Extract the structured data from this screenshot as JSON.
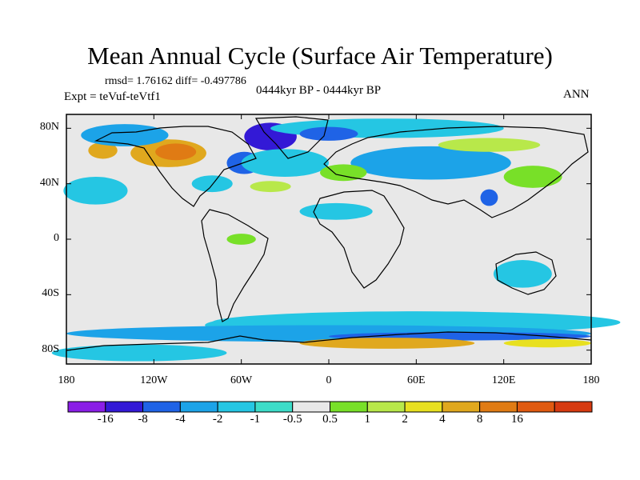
{
  "title": "Mean Annual Cycle (Surface Air Temperature)",
  "stats_line": "rmsd= 1.76162 diff= -0.497786",
  "experiment_line": "Expt = teVuf-teVtf1",
  "period_line": "0444kyr BP - 0444kyr BP",
  "season_label": "ANN",
  "map": {
    "lon_range": [
      -180,
      180
    ],
    "lat_range": [
      -90,
      90
    ],
    "lat_ticks": [
      {
        "value": 80,
        "label": "80N"
      },
      {
        "value": 40,
        "label": "40N"
      },
      {
        "value": 0,
        "label": "0"
      },
      {
        "value": -40,
        "label": "40S"
      },
      {
        "value": -80,
        "label": "80S"
      }
    ],
    "lon_ticks": [
      {
        "value": -180,
        "label": "180"
      },
      {
        "value": -120,
        "label": "120W"
      },
      {
        "value": -60,
        "label": "60W"
      },
      {
        "value": 0,
        "label": "0"
      },
      {
        "value": 60,
        "label": "60E"
      },
      {
        "value": 120,
        "label": "120E"
      },
      {
        "value": 180,
        "label": "180"
      }
    ],
    "background_color": "#e8e8e8"
  },
  "colorbar": {
    "colors": [
      "#8a1ee6",
      "#3319d6",
      "#1f63e6",
      "#1ca3e8",
      "#25c6e3",
      "#3cdcc8",
      "#e8e8e8",
      "#78e028",
      "#b8e84a",
      "#e8e020",
      "#e0a81e",
      "#e07b14",
      "#e05a10",
      "#d63a10"
    ],
    "labels": [
      {
        "value": "-16",
        "boundary": 1
      },
      {
        "value": "-8",
        "boundary": 2
      },
      {
        "value": "-4",
        "boundary": 3
      },
      {
        "value": "-2",
        "boundary": 4
      },
      {
        "value": "-1",
        "boundary": 5
      },
      {
        "value": "-0.5",
        "boundary": 6
      },
      {
        "value": "0.5",
        "boundary": 7
      },
      {
        "value": "1",
        "boundary": 8
      },
      {
        "value": "2",
        "boundary": 9
      },
      {
        "value": "4",
        "boundary": 10
      },
      {
        "value": "8",
        "boundary": 11
      },
      {
        "value": "16",
        "boundary": 12
      }
    ]
  },
  "anomaly_regions": [
    {
      "name": "canada-warm",
      "color": "#e0a81e",
      "lon": -110,
      "lat": 62,
      "rlon": 26,
      "rlat": 10
    },
    {
      "name": "canada-warm-core",
      "color": "#e07b14",
      "lon": -105,
      "lat": 63,
      "rlon": 14,
      "rlat": 6
    },
    {
      "name": "alaska-warm",
      "color": "#e0a81e",
      "lon": -155,
      "lat": 64,
      "rlon": 10,
      "rlat": 6
    },
    {
      "name": "beaufort-cool",
      "color": "#1ca3e8",
      "lon": -140,
      "lat": 75,
      "rlon": 30,
      "rlat": 8
    },
    {
      "name": "greenland-cold",
      "color": "#3319d6",
      "lon": -40,
      "lat": 74,
      "rlon": 18,
      "rlat": 10
    },
    {
      "name": "labrador-cold",
      "color": "#1f63e6",
      "lon": -58,
      "lat": 55,
      "rlon": 12,
      "rlat": 8
    },
    {
      "name": "north-atlantic-cool",
      "color": "#25c6e3",
      "lon": -30,
      "lat": 55,
      "rlon": 30,
      "rlat": 10
    },
    {
      "name": "arctic-cool",
      "color": "#25c6e3",
      "lon": 40,
      "lat": 80,
      "rlon": 80,
      "rlat": 7
    },
    {
      "name": "barents-cold",
      "color": "#1f63e6",
      "lon": 0,
      "lat": 76,
      "rlon": 20,
      "rlat": 5
    },
    {
      "name": "eurasia-cool",
      "color": "#1ca3e8",
      "lon": 70,
      "lat": 55,
      "rlon": 55,
      "rlat": 12
    },
    {
      "name": "siberia-warm",
      "color": "#b8e84a",
      "lon": 110,
      "lat": 68,
      "rlon": 35,
      "rlat": 5
    },
    {
      "name": "europe-warm",
      "color": "#78e028",
      "lon": 10,
      "lat": 48,
      "rlon": 16,
      "rlat": 6
    },
    {
      "name": "east-asia-warm",
      "color": "#78e028",
      "lon": 140,
      "lat": 45,
      "rlon": 20,
      "rlat": 8
    },
    {
      "name": "pacific-cool",
      "color": "#25c6e3",
      "lon": -160,
      "lat": 35,
      "rlon": 22,
      "rlat": 10
    },
    {
      "name": "us-east-cool",
      "color": "#25c6e3",
      "lon": -80,
      "lat": 40,
      "rlon": 14,
      "rlat": 6
    },
    {
      "name": "atlantic-warm",
      "color": "#b8e84a",
      "lon": -40,
      "lat": 38,
      "rlon": 14,
      "rlat": 4
    },
    {
      "name": "china-cold",
      "color": "#1f63e6",
      "lon": 110,
      "lat": 30,
      "rlon": 6,
      "rlat": 6
    },
    {
      "name": "sahara-cool",
      "color": "#25c6e3",
      "lon": 5,
      "lat": 20,
      "rlon": 25,
      "rlat": 6
    },
    {
      "name": "amazon-warm",
      "color": "#78e028",
      "lon": -60,
      "lat": 0,
      "rlon": 10,
      "rlat": 4
    },
    {
      "name": "australia-cool",
      "color": "#25c6e3",
      "lon": 133,
      "lat": -25,
      "rlon": 20,
      "rlat": 10
    },
    {
      "name": "south-atlantic-cool",
      "color": "#25c6e3",
      "lon": -35,
      "lat": -62,
      "rlon": 50,
      "rlat": 6
    },
    {
      "name": "southern-ocean-cool",
      "color": "#25c6e3",
      "lon": 60,
      "lat": -60,
      "rlon": 140,
      "rlat": 8
    },
    {
      "name": "southern-ocean-band",
      "color": "#1ca3e8",
      "lon": 0,
      "lat": -68,
      "rlon": 180,
      "rlat": 6
    },
    {
      "name": "southern-ocean-deep",
      "color": "#1f63e6",
      "lon": 90,
      "lat": -70,
      "rlon": 90,
      "rlat": 3
    },
    {
      "name": "antarctica-warm",
      "color": "#e0a81e",
      "lon": 40,
      "lat": -75,
      "rlon": 60,
      "rlat": 4
    },
    {
      "name": "antarctica-warm-b",
      "color": "#e8e020",
      "lon": 150,
      "lat": -75,
      "rlon": 30,
      "rlat": 3
    },
    {
      "name": "antarctica-cool",
      "color": "#25c6e3",
      "lon": -130,
      "lat": -82,
      "rlon": 60,
      "rlat": 6
    }
  ]
}
